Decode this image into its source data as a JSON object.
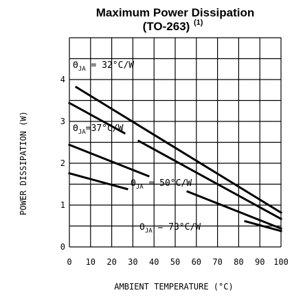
{
  "chart_data": {
    "type": "line",
    "title": "Maximum Power Dissipation",
    "subtitle": "(TO-263)",
    "subtitle_sup": "(1)",
    "xlabel": "AMBIENT TEMPERATURE (°C)",
    "ylabel": "POWER DISSIPATION (W)",
    "xlim": [
      0,
      100
    ],
    "ylim": [
      0,
      5
    ],
    "x_ticks": [
      "0",
      "10",
      "20",
      "30",
      "40",
      "50",
      "60",
      "70",
      "80",
      "90",
      "100"
    ],
    "y_ticks": [
      "0",
      "1",
      "2",
      "3",
      "4"
    ],
    "grid": true,
    "series": [
      {
        "symbol": "Θ",
        "sub": "JA",
        "rest": " = 32°C/W",
        "x": [
          0,
          100
        ],
        "y": [
          3.92,
          0.82
        ]
      },
      {
        "symbol": "Θ",
        "sub": "JA",
        "rest": "=37°C/W",
        "x": [
          0,
          100
        ],
        "y": [
          3.44,
          0.67
        ]
      },
      {
        "symbol": "Θ",
        "sub": "JA",
        "rest": " = 50°C/W",
        "x": [
          0,
          100
        ],
        "y": [
          2.44,
          0.44
        ]
      },
      {
        "symbol": "Θ",
        "sub": "JA",
        "rest": " = 73°C/W",
        "x": [
          0,
          100
        ],
        "y": [
          1.76,
          0.38
        ]
      }
    ]
  }
}
